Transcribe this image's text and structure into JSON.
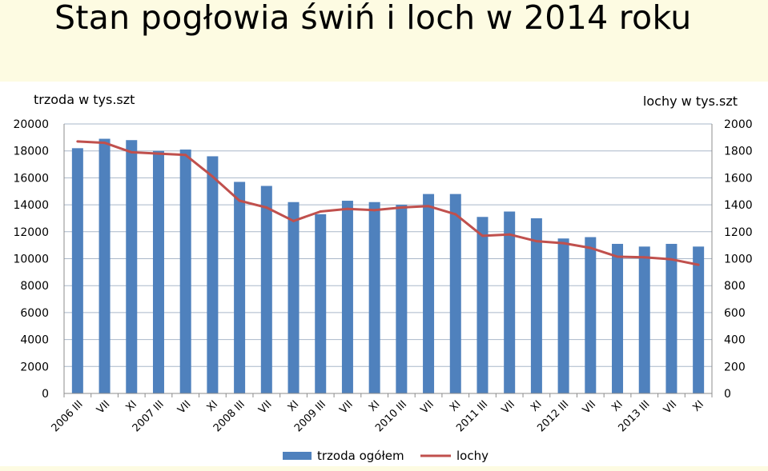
{
  "slide": {
    "title": "Stan pogłowia świń i loch w 2014 roku"
  },
  "chart_data": {
    "type": "bar",
    "title": "",
    "left_axis_label": "trzoda w tys.szt",
    "right_axis_label": "lochy w tys.szt",
    "categories": [
      "2006 III",
      "VII",
      "XI",
      "2007 III",
      "VII",
      "XI",
      "2008 III",
      "VII",
      "XI",
      "2009 III",
      "VII",
      "XI",
      "2010 III",
      "VII",
      "XI",
      "2011 III",
      "VII",
      "XI",
      "2012 III",
      "VII",
      "XI",
      "2013 III",
      "VII",
      "XI"
    ],
    "ylim_left": [
      0,
      20000
    ],
    "ylim_right": [
      0,
      2000
    ],
    "yticks_left": [
      0,
      2000,
      4000,
      6000,
      8000,
      10000,
      12000,
      14000,
      16000,
      18000,
      20000
    ],
    "yticks_right": [
      0,
      200,
      400,
      600,
      800,
      1000,
      1200,
      1400,
      1600,
      1800,
      2000
    ],
    "grid": true,
    "legend_position": "bottom",
    "series": [
      {
        "name": "trzoda ogółem",
        "type": "bar",
        "axis": "left",
        "color": "#4f81bd",
        "values": [
          18200,
          18900,
          18800,
          18000,
          18100,
          17600,
          15700,
          15400,
          14200,
          13300,
          14300,
          14200,
          14000,
          14800,
          14800,
          13100,
          13500,
          13000,
          11500,
          11600,
          11100,
          10900,
          11100,
          10900
        ]
      },
      {
        "name": "lochy",
        "type": "line",
        "axis": "right",
        "color": "#c0504d",
        "values": [
          1870,
          1860,
          1790,
          1780,
          1770,
          1610,
          1430,
          1380,
          1280,
          1350,
          1370,
          1360,
          1380,
          1390,
          1330,
          1170,
          1180,
          1130,
          1115,
          1080,
          1015,
          1010,
          995,
          955
        ]
      }
    ]
  }
}
